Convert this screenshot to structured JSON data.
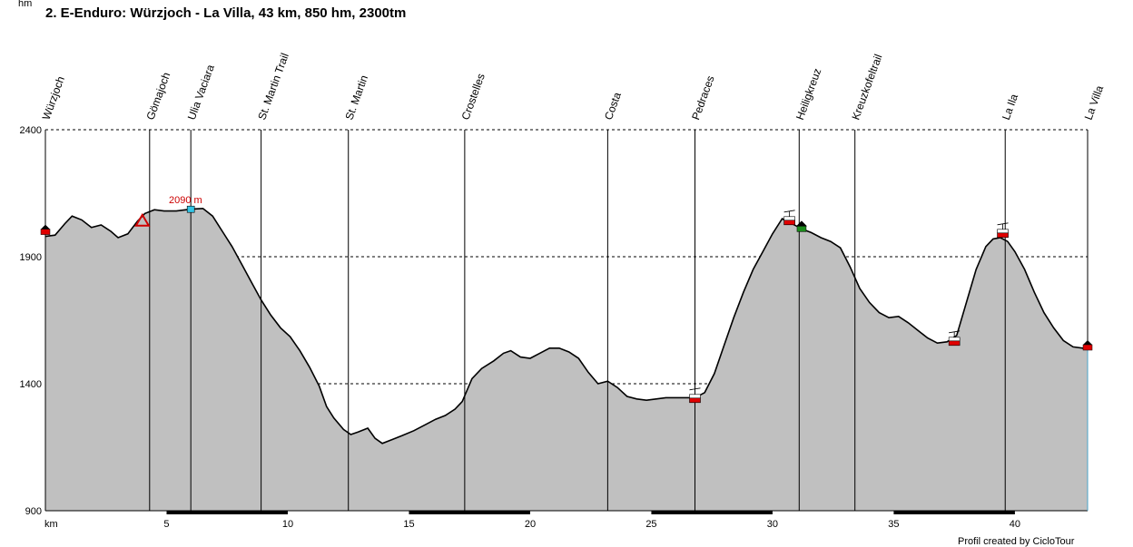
{
  "chart_data": {
    "type": "area",
    "title": "2. E-Enduro: Würzjoch - La Villa, 43 km, 850 hm, 2300tm",
    "ylabel": "hm",
    "xlabel": "km",
    "xlim": [
      0,
      43
    ],
    "ylim": [
      900,
      2400
    ],
    "x_ticks": [
      5,
      10,
      15,
      20,
      25,
      30,
      35,
      40
    ],
    "y_ticks": [
      900,
      1400,
      1900,
      2400
    ],
    "grid": "horizontal dashed at y ticks",
    "max_label": "2090 m",
    "credit": "Profil created by CicloTour",
    "colors": {
      "fill": "#c0c0c0",
      "line": "#000000",
      "max_label": "#cc0000"
    },
    "waypoints": [
      {
        "name": "Würzjoch",
        "km": 0.0
      },
      {
        "name": "Gömajoch",
        "km": 4.3
      },
      {
        "name": "Ulia Vaciara",
        "km": 6.0
      },
      {
        "name": "St. Martin Trail",
        "km": 8.9
      },
      {
        "name": "St. Martin",
        "km": 12.5
      },
      {
        "name": "Crostelles",
        "km": 17.3
      },
      {
        "name": "Costa",
        "km": 23.2
      },
      {
        "name": "Pedraces",
        "km": 26.8
      },
      {
        "name": "Heiligkreuz",
        "km": 31.1
      },
      {
        "name": "Kreuzkofeltrail",
        "km": 33.4
      },
      {
        "name": "La Ila",
        "km": 39.6
      },
      {
        "name": "La Villa",
        "km": 43.0
      }
    ],
    "markers": [
      {
        "icon": "flag-icon",
        "km": 0.0,
        "elev": 2005
      },
      {
        "icon": "peak-icon",
        "km": 4.0,
        "elev": 2040
      },
      {
        "icon": "summit-icon",
        "km": 6.0,
        "elev": 2085
      },
      {
        "icon": "cable-car-icon",
        "km": 26.8,
        "elev": 1340
      },
      {
        "icon": "cable-car-icon",
        "km": 30.7,
        "elev": 2040
      },
      {
        "icon": "church-icon",
        "km": 31.2,
        "elev": 2020
      },
      {
        "icon": "cable-car-icon",
        "km": 37.5,
        "elev": 1565
      },
      {
        "icon": "cable-car-icon",
        "km": 39.5,
        "elev": 1990
      },
      {
        "icon": "flag-icon",
        "km": 43.0,
        "elev": 1550
      }
    ],
    "series": [
      {
        "x": [
          0,
          0.4,
          0.8,
          1.1,
          1.5,
          1.9,
          2.3,
          2.7,
          3.0,
          3.4,
          3.8,
          4.1,
          4.5,
          4.9,
          5.4,
          6.0,
          6.5,
          6.9,
          7.3,
          7.7,
          8.1,
          8.5,
          8.9,
          9.3,
          9.7,
          10.1,
          10.5,
          10.9,
          11.3,
          11.6,
          11.9,
          12.3,
          12.6,
          12.9,
          13.3,
          13.6,
          13.9,
          14.3,
          14.7,
          15.2,
          15.7,
          16.1,
          16.5,
          16.9,
          17.2,
          17.6,
          18.0,
          18.5,
          18.9,
          19.2,
          19.6,
          20.0,
          20.4,
          20.8,
          21.2,
          21.6,
          22.0,
          22.4,
          22.8,
          23.2,
          23.6,
          24.0,
          24.4,
          24.8,
          25.2,
          25.6,
          26.0,
          26.4,
          26.8,
          27.2,
          27.6,
          28.0,
          28.4,
          28.8,
          29.2,
          29.6,
          30.0,
          30.4,
          30.8,
          31.2,
          31.6,
          32.0,
          32.4,
          32.8,
          33.2,
          33.6,
          34.0,
          34.4,
          34.8,
          35.2,
          35.6,
          36.0,
          36.4,
          36.8,
          37.2,
          37.6,
          38.0,
          38.4,
          38.8,
          39.1,
          39.4,
          39.7,
          40.0,
          40.4,
          40.8,
          41.2,
          41.6,
          42.0,
          42.4,
          42.8,
          43.0
        ],
        "y": [
          1980,
          1985,
          2030,
          2060,
          2045,
          2015,
          2025,
          2000,
          1975,
          1990,
          2040,
          2070,
          2085,
          2080,
          2080,
          2087,
          2090,
          2060,
          2000,
          1940,
          1870,
          1800,
          1730,
          1670,
          1620,
          1585,
          1530,
          1465,
          1390,
          1310,
          1265,
          1220,
          1200,
          1210,
          1225,
          1185,
          1165,
          1180,
          1195,
          1215,
          1240,
          1260,
          1275,
          1300,
          1330,
          1420,
          1460,
          1490,
          1520,
          1530,
          1505,
          1500,
          1520,
          1540,
          1540,
          1525,
          1500,
          1445,
          1400,
          1410,
          1385,
          1350,
          1340,
          1335,
          1340,
          1345,
          1345,
          1345,
          1345,
          1365,
          1440,
          1550,
          1660,
          1760,
          1850,
          1920,
          1990,
          2050,
          2030,
          2010,
          1995,
          1975,
          1960,
          1935,
          1860,
          1775,
          1720,
          1680,
          1660,
          1665,
          1640,
          1610,
          1580,
          1560,
          1565,
          1590,
          1720,
          1850,
          1940,
          1970,
          1975,
          1960,
          1920,
          1850,
          1760,
          1680,
          1620,
          1570,
          1545,
          1540,
          1540
        ]
      }
    ]
  }
}
